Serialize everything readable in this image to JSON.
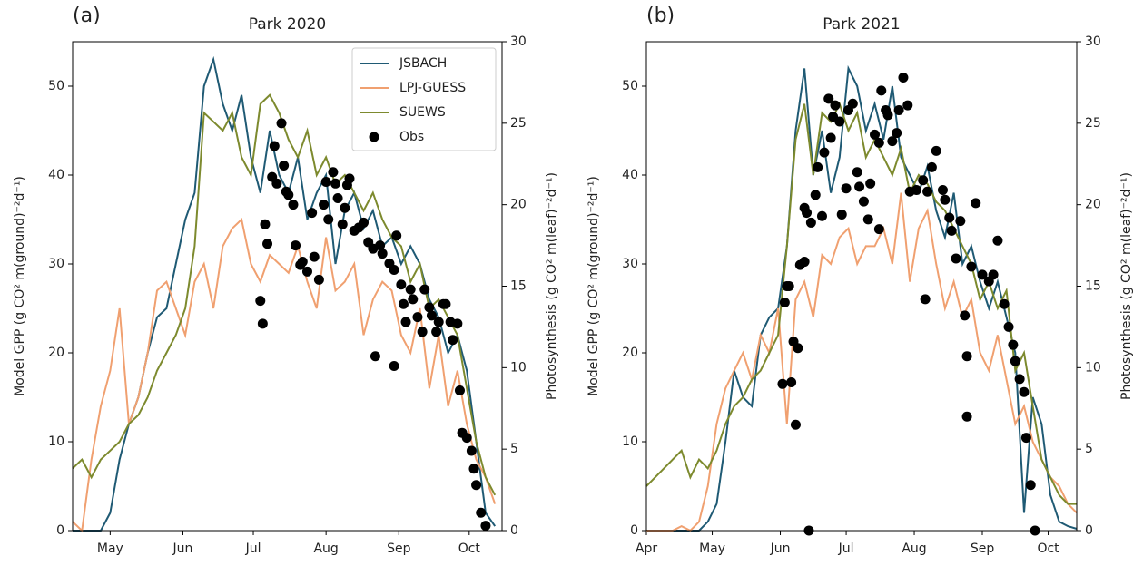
{
  "chart_data": [
    {
      "type": "line",
      "panel_label": "(a)",
      "title": "Park 2020",
      "ylabel": "Model GPP (g CO² m(ground)⁻²d⁻¹)",
      "y2label": "Photosynthesis (g CO² m(leaf)⁻²d⁻¹)",
      "xlim": [
        106,
        289
      ],
      "xticks": [
        {
          "value": 122,
          "label": "May"
        },
        {
          "value": 153,
          "label": "Jun"
        },
        {
          "value": 183,
          "label": "Jul"
        },
        {
          "value": 214,
          "label": "Aug"
        },
        {
          "value": 245,
          "label": "Sep"
        },
        {
          "value": 275,
          "label": "Oct"
        }
      ],
      "ylim": [
        0,
        55
      ],
      "yticks": [
        0,
        10,
        20,
        30,
        40,
        50
      ],
      "y2lim": [
        0,
        30
      ],
      "y2ticks": [
        0,
        5,
        10,
        15,
        20,
        25,
        30
      ],
      "legend": "upper right",
      "x": [
        106,
        110,
        114,
        118,
        122,
        126,
        130,
        134,
        138,
        142,
        146,
        150,
        154,
        158,
        162,
        166,
        170,
        174,
        178,
        182,
        186,
        190,
        194,
        198,
        202,
        206,
        210,
        214,
        218,
        222,
        226,
        230,
        234,
        238,
        242,
        246,
        250,
        254,
        258,
        262,
        266,
        270,
        274,
        278,
        282,
        286
      ],
      "series": [
        {
          "name": "JSBACH",
          "color": "#1f5a74",
          "values": [
            0,
            0,
            0,
            0,
            2,
            8,
            12,
            15,
            20,
            24,
            25,
            30,
            35,
            38,
            50,
            53,
            48,
            45,
            49,
            42,
            38,
            45,
            40,
            38,
            42,
            35,
            38,
            40,
            30,
            36,
            38,
            34,
            36,
            32,
            33,
            30,
            32,
            30,
            26,
            24,
            20,
            22,
            18,
            10,
            2,
            0.5
          ]
        },
        {
          "name": "LPJ-GUESS",
          "color": "#f0a070",
          "values": [
            1,
            0,
            8,
            14,
            18,
            25,
            12,
            15,
            20,
            27,
            28,
            25,
            22,
            28,
            30,
            25,
            32,
            34,
            35,
            30,
            28,
            31,
            30,
            29,
            32,
            28,
            25,
            33,
            27,
            28,
            30,
            22,
            26,
            28,
            27,
            22,
            20,
            25,
            16,
            22,
            14,
            18,
            12,
            8,
            6,
            3
          ]
        },
        {
          "name": "SUEWS",
          "color": "#7d8a2e",
          "values": [
            7,
            8,
            6,
            8,
            9,
            10,
            12,
            13,
            15,
            18,
            20,
            22,
            25,
            32,
            47,
            46,
            45,
            47,
            42,
            40,
            48,
            49,
            47,
            44,
            42,
            45,
            40,
            42,
            39,
            40,
            38,
            36,
            38,
            35,
            33,
            32,
            28,
            30,
            25,
            26,
            24,
            22,
            16,
            10,
            6,
            4
          ]
        },
        {
          "name": "Obs",
          "color": "#000000",
          "style": "scatter",
          "axis": "y2",
          "x": [
            186,
            187,
            188,
            189,
            191,
            192,
            193,
            195,
            196,
            197,
            198,
            200,
            201,
            203,
            204,
            206,
            208,
            209,
            211,
            213,
            214,
            215,
            217,
            218,
            219,
            221,
            222,
            223,
            224,
            226,
            228,
            230,
            232,
            234,
            237,
            238,
            241,
            243,
            244,
            246,
            247,
            248,
            250,
            251,
            253,
            255,
            256,
            258,
            259,
            261,
            262,
            264,
            265,
            267,
            268,
            270,
            271,
            272,
            274,
            276,
            277,
            278,
            280,
            282,
            235,
            243
          ],
          "values": [
            14.1,
            12.7,
            18.8,
            17.6,
            21.7,
            23.6,
            21.3,
            25.0,
            22.4,
            20.8,
            20.6,
            20.0,
            17.5,
            16.3,
            16.5,
            15.9,
            19.5,
            16.8,
            15.4,
            20.0,
            21.4,
            19.1,
            22.0,
            21.3,
            20.4,
            18.8,
            19.8,
            21.2,
            21.6,
            18.4,
            18.6,
            18.9,
            17.7,
            17.3,
            17.5,
            17.0,
            16.4,
            16.0,
            18.1,
            15.1,
            13.9,
            12.8,
            14.8,
            14.2,
            13.1,
            12.2,
            14.8,
            13.7,
            13.2,
            12.2,
            12.8,
            13.9,
            13.9,
            12.8,
            11.7,
            12.7,
            8.6,
            6.0,
            5.7,
            4.9,
            3.8,
            2.8,
            1.1,
            0.3,
            10.7,
            10.1
          ]
        }
      ]
    },
    {
      "type": "line",
      "panel_label": "(b)",
      "title": "Park 2021",
      "ylabel": "Model GPP (g CO² m(ground)⁻²d⁻¹)",
      "y2label": "Photosynthesis (g CO² m(leaf)⁻²d⁻¹)",
      "xlim": [
        91,
        287
      ],
      "xticks": [
        {
          "value": 91,
          "label": "Apr"
        },
        {
          "value": 121,
          "label": "May"
        },
        {
          "value": 152,
          "label": "Jun"
        },
        {
          "value": 182,
          "label": "Jul"
        },
        {
          "value": 213,
          "label": "Aug"
        },
        {
          "value": 244,
          "label": "Sep"
        },
        {
          "value": 274,
          "label": "Oct"
        }
      ],
      "ylim": [
        0,
        55
      ],
      "yticks": [
        0,
        10,
        20,
        30,
        40,
        50
      ],
      "y2lim": [
        0,
        30
      ],
      "y2ticks": [
        0,
        5,
        10,
        15,
        20,
        25,
        30
      ],
      "x": [
        91,
        95,
        99,
        103,
        107,
        111,
        115,
        119,
        123,
        127,
        131,
        135,
        139,
        143,
        147,
        151,
        155,
        159,
        163,
        167,
        171,
        175,
        179,
        183,
        187,
        191,
        195,
        199,
        203,
        207,
        211,
        215,
        219,
        223,
        227,
        231,
        235,
        239,
        243,
        247,
        251,
        255,
        259,
        263,
        267,
        271,
        275,
        279,
        283,
        287
      ],
      "series": [
        {
          "color": "#1f5a74",
          "values": [
            0,
            0,
            0,
            0,
            0,
            0,
            0,
            1,
            3,
            10,
            18,
            15,
            14,
            22,
            24,
            25,
            32,
            45,
            52,
            40,
            45,
            38,
            42,
            52,
            50,
            45,
            48,
            44,
            50,
            42,
            40,
            38,
            41,
            36,
            33,
            38,
            30,
            32,
            28,
            25,
            28,
            24,
            20,
            2,
            15,
            12,
            4,
            1,
            0.5,
            0.2
          ]
        },
        {
          "color": "#f0a070",
          "values": [
            0,
            0,
            0,
            0,
            0.5,
            0,
            1,
            5,
            12,
            16,
            18,
            20,
            17,
            22,
            20,
            25,
            12,
            26,
            28,
            24,
            31,
            30,
            33,
            34,
            30,
            32,
            32,
            34,
            30,
            38,
            28,
            34,
            36,
            30,
            25,
            28,
            24,
            26,
            20,
            18,
            22,
            17,
            12,
            14,
            10,
            8,
            6,
            5,
            3,
            2
          ]
        },
        {
          "color": "#7d8a2e",
          "values": [
            5,
            6,
            7,
            8,
            9,
            6,
            8,
            7,
            9,
            12,
            14,
            15,
            17,
            18,
            20,
            22,
            32,
            44,
            48,
            40,
            47,
            46,
            48,
            45,
            47,
            42,
            44,
            42,
            40,
            43,
            38,
            40,
            39,
            37,
            36,
            34,
            32,
            30,
            26,
            28,
            25,
            27,
            18,
            20,
            14,
            8,
            6,
            4,
            3,
            3
          ]
        },
        {
          "color": "#000000",
          "style": "scatter",
          "axis": "y2",
          "x": [
            154,
            155,
            156,
            158,
            157,
            159,
            153,
            160,
            161,
            163,
            163,
            164,
            166,
            168,
            169,
            171,
            172,
            174,
            175,
            176,
            177,
            179,
            180,
            182,
            183,
            185,
            187,
            188,
            190,
            192,
            193,
            195,
            197,
            198,
            200,
            201,
            203,
            205,
            206,
            208,
            210,
            197,
            211,
            214,
            217,
            218,
            219,
            221,
            223,
            226,
            227,
            229,
            230,
            232,
            234,
            236,
            237,
            237,
            239,
            241,
            244,
            247,
            249,
            251,
            254,
            256,
            258,
            259,
            261,
            263,
            264,
            266,
            268,
            165
          ],
          "values": [
            14.0,
            15.0,
            15.0,
            11.6,
            9.1,
            6.5,
            9.0,
            11.2,
            16.3,
            16.5,
            19.8,
            19.5,
            18.9,
            20.6,
            22.3,
            19.3,
            23.2,
            26.5,
            24.1,
            25.4,
            26.1,
            25.1,
            19.4,
            21.0,
            25.8,
            26.2,
            22.0,
            21.1,
            20.2,
            19.1,
            21.3,
            24.3,
            23.8,
            27.0,
            25.8,
            25.5,
            23.9,
            24.4,
            25.8,
            27.8,
            26.1,
            18.5,
            20.8,
            20.9,
            21.5,
            14.2,
            20.8,
            22.3,
            23.3,
            20.9,
            20.3,
            19.2,
            18.4,
            16.7,
            19.0,
            13.2,
            10.7,
            7.0,
            16.2,
            20.1,
            15.7,
            15.3,
            15.7,
            17.8,
            13.9,
            12.5,
            11.4,
            10.4,
            9.3,
            8.5,
            5.7,
            2.8,
            0,
            0
          ]
        }
      ]
    }
  ]
}
